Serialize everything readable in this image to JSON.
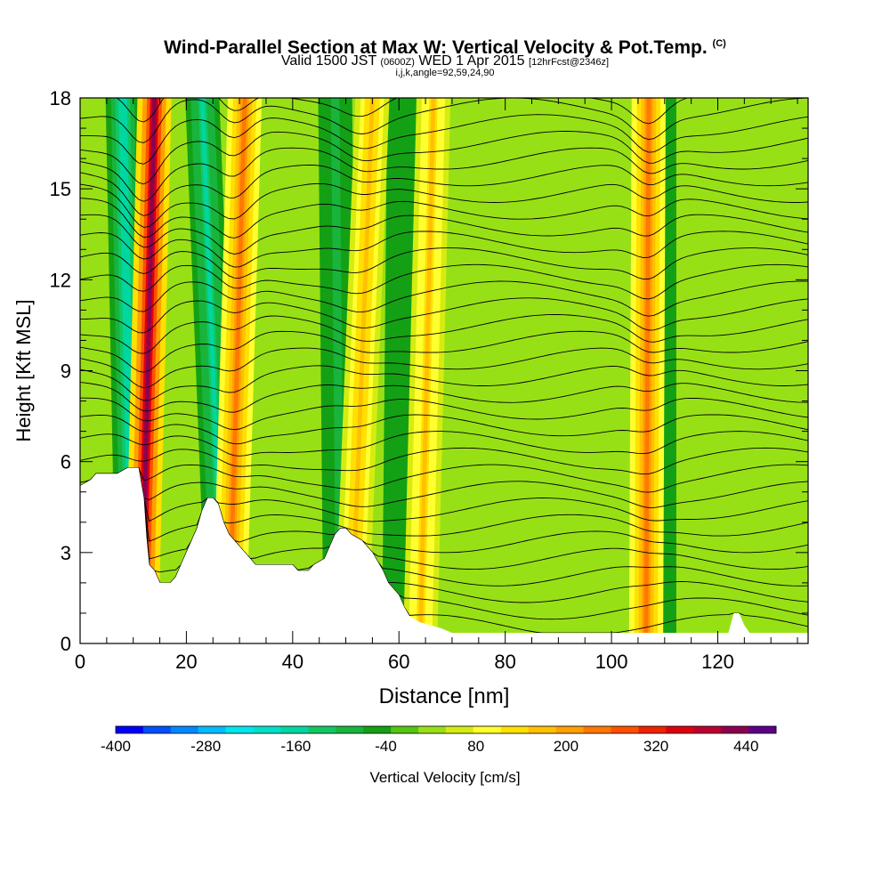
{
  "header": {
    "title": "Wind-Parallel Section at Max W: Vertical Velocity & Pot.Temp.",
    "title_mark": "(C)",
    "valid_prefix": "Valid 1500 JST",
    "valid_utc": "(0600Z)",
    "valid_date": "WED 1 Apr 2015",
    "forecast": "[12hrFcst@2346z]",
    "indices": "i,j,k,angle=92,59,24,90"
  },
  "chart_data": {
    "type": "heatmap",
    "xlabel": "Distance [nm]",
    "ylabel": "Height [Kft MSL]",
    "xlim": [
      0,
      137
    ],
    "ylim": [
      0,
      18
    ],
    "x_ticks": [
      0,
      20,
      40,
      60,
      80,
      100,
      120
    ],
    "y_ticks": [
      0,
      3,
      6,
      9,
      12,
      15,
      18
    ],
    "colorbar": {
      "label": "Vertical Velocity [cm/s]",
      "range": [
        -400,
        480
      ],
      "tick_values": [
        -400,
        -280,
        -160,
        -40,
        80,
        200,
        320,
        440
      ],
      "tick_labels": [
        "-400",
        "-280",
        "-160",
        "-40",
        "80",
        "200",
        "320",
        "440"
      ],
      "colors": [
        "#0000ff",
        "#0050ff",
        "#0088ff",
        "#00bbff",
        "#00e5ee",
        "#00e0c8",
        "#00d7a0",
        "#11c764",
        "#18b43c",
        "#14a014",
        "#55c612",
        "#98e016",
        "#d6ec10",
        "#ffff30",
        "#ffe000",
        "#ffc000",
        "#ffa000",
        "#ff7800",
        "#ff5000",
        "#ee2200",
        "#dd0010",
        "#bb0030",
        "#8c0050",
        "#5c0088"
      ]
    },
    "updraft_bands": [
      {
        "x_top": 14,
        "x_bottom": 11.5,
        "w": 440
      },
      {
        "x_top": 31,
        "x_bottom": 28,
        "w": 230
      },
      {
        "x_top": 55,
        "x_bottom": 51,
        "w": 170
      },
      {
        "x_top": 66.5,
        "x_bottom": 64,
        "w": 150
      },
      {
        "x_top": 107,
        "x_bottom": 106.5,
        "w": 240
      }
    ],
    "downdraft_bands": [
      {
        "x_top": 8,
        "x_bottom": 10,
        "w": -170
      },
      {
        "x_top": 23,
        "x_bottom": 27,
        "w": -150
      },
      {
        "x_top": 48,
        "x_bottom": 49,
        "w": -80
      },
      {
        "x_top": 61,
        "x_bottom": 60,
        "w": -70
      },
      {
        "x_top": 109,
        "x_bottom": 109,
        "w": -90
      }
    ],
    "terrain_kft": [
      [
        0,
        5.2
      ],
      [
        2,
        5.4
      ],
      [
        3,
        5.6
      ],
      [
        7,
        5.6
      ],
      [
        9,
        5.8
      ],
      [
        11,
        5.8
      ],
      [
        12,
        4.8
      ],
      [
        12.5,
        3.5
      ],
      [
        13,
        2.6
      ],
      [
        14,
        2.4
      ],
      [
        15,
        2.0
      ],
      [
        17,
        2.0
      ],
      [
        18,
        2.2
      ],
      [
        19,
        2.6
      ],
      [
        20,
        3.0
      ],
      [
        21,
        3.4
      ],
      [
        22,
        3.8
      ],
      [
        23,
        4.4
      ],
      [
        24,
        4.8
      ],
      [
        25,
        4.8
      ],
      [
        26,
        4.6
      ],
      [
        27,
        4.0
      ],
      [
        28,
        3.6
      ],
      [
        29,
        3.4
      ],
      [
        30,
        3.2
      ],
      [
        31,
        3.0
      ],
      [
        32,
        2.8
      ],
      [
        33,
        2.6
      ],
      [
        40,
        2.6
      ],
      [
        41,
        2.4
      ],
      [
        43,
        2.4
      ],
      [
        44,
        2.6
      ],
      [
        46,
        2.8
      ],
      [
        47,
        3.2
      ],
      [
        48,
        3.6
      ],
      [
        49,
        3.8
      ],
      [
        50,
        3.8
      ],
      [
        51,
        3.6
      ],
      [
        53,
        3.4
      ],
      [
        54,
        3.2
      ],
      [
        55,
        3.0
      ],
      [
        56,
        2.7
      ],
      [
        57,
        2.4
      ],
      [
        58,
        2.0
      ],
      [
        60,
        1.6
      ],
      [
        61,
        1.2
      ],
      [
        62,
        0.9
      ],
      [
        64,
        0.7
      ],
      [
        66,
        0.6
      ],
      [
        68,
        0.5
      ],
      [
        70,
        0.35
      ],
      [
        122,
        0.35
      ],
      [
        123,
        1.0
      ],
      [
        124,
        1.0
      ],
      [
        125,
        0.6
      ],
      [
        126,
        0.35
      ],
      [
        137,
        0.35
      ]
    ]
  }
}
